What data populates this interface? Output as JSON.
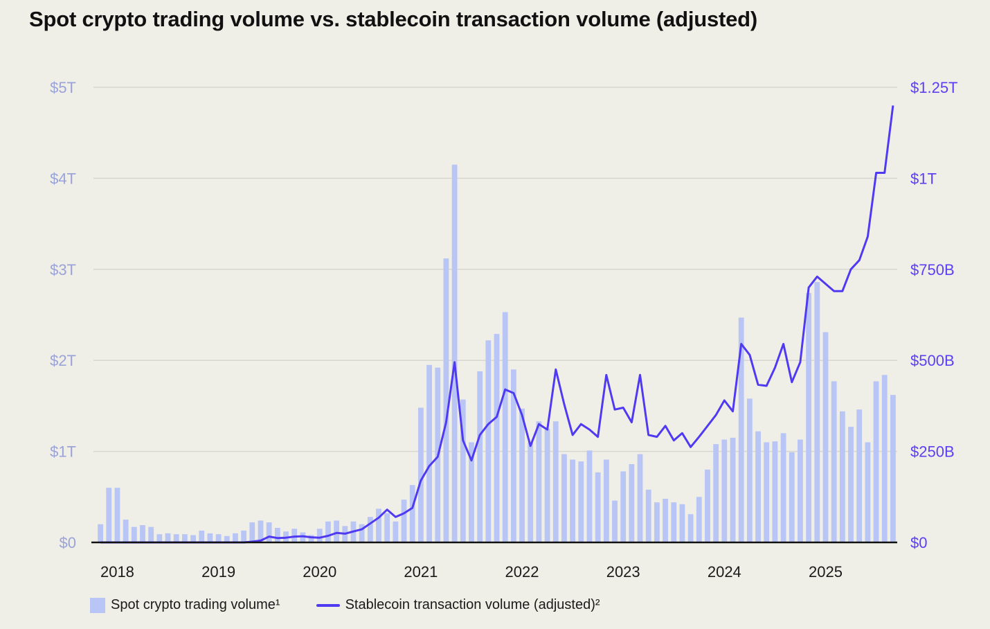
{
  "chart_data": {
    "type": "bar",
    "title": "Spot crypto trading volume vs. stablecoin transaction volume (adjusted)",
    "colors": {
      "bars": "#b8c5f5",
      "line": "#4f3af2",
      "left_axis": "#9aa3d8",
      "right_axis": "#5a3ff5",
      "grid": "#d6d6d0",
      "background": "#f0efe7"
    },
    "x_start": "2017-11",
    "x_end": "2025-09",
    "x_ticks": [
      "2018",
      "2019",
      "2020",
      "2021",
      "2022",
      "2023",
      "2024",
      "2025"
    ],
    "left_axis": {
      "ticks": [
        "$0",
        "$1T",
        "$2T",
        "$3T",
        "$4T",
        "$5T"
      ],
      "range": [
        0,
        5
      ],
      "unit": "T"
    },
    "right_axis": {
      "ticks": [
        "$0",
        "$250B",
        "$500B",
        "$750B",
        "$1T",
        "$1.25T"
      ],
      "range": [
        0,
        1250
      ],
      "unit": "B"
    },
    "grid": true,
    "legend_position": "bottom-left",
    "series": [
      {
        "name": "Spot crypto trading volume¹",
        "type": "bar",
        "axis": "left",
        "values": [
          0.2,
          0.6,
          0.6,
          0.25,
          0.17,
          0.19,
          0.17,
          0.09,
          0.1,
          0.09,
          0.09,
          0.08,
          0.13,
          0.1,
          0.09,
          0.07,
          0.1,
          0.13,
          0.22,
          0.24,
          0.22,
          0.16,
          0.12,
          0.15,
          0.11,
          0.08,
          0.15,
          0.23,
          0.24,
          0.18,
          0.23,
          0.2,
          0.28,
          0.37,
          0.32,
          0.23,
          0.47,
          0.63,
          1.48,
          1.95,
          1.92,
          3.12,
          4.15,
          1.57,
          1.1,
          1.88,
          2.22,
          2.29,
          2.53,
          1.9,
          1.47,
          1.1,
          1.33,
          1.25,
          1.33,
          0.97,
          0.91,
          0.89,
          1.01,
          0.77,
          0.91,
          0.46,
          0.78,
          0.86,
          0.97,
          0.58,
          0.44,
          0.48,
          0.44,
          0.42,
          0.31,
          0.5,
          0.8,
          1.08,
          1.13,
          1.15,
          2.47,
          1.58,
          1.22,
          1.1,
          1.11,
          1.2,
          0.99,
          1.13,
          2.74,
          2.86,
          2.31,
          1.77,
          1.44,
          1.27,
          1.46,
          1.1,
          1.77,
          1.84,
          1.62
        ]
      },
      {
        "name": "Stablecoin transaction volume (adjusted)²",
        "type": "line",
        "axis": "right",
        "values": [
          0,
          0,
          0,
          0,
          0,
          0,
          0,
          0,
          0,
          0,
          0,
          0,
          0,
          0,
          0,
          0,
          0,
          0,
          2,
          5,
          16,
          12,
          13,
          16,
          17,
          14,
          13,
          18,
          26,
          24,
          30,
          36,
          52,
          68,
          90,
          70,
          80,
          95,
          170,
          210,
          235,
          330,
          495,
          280,
          225,
          295,
          325,
          345,
          420,
          410,
          350,
          265,
          325,
          310,
          475,
          380,
          295,
          325,
          310,
          290,
          460,
          365,
          370,
          330,
          460,
          295,
          290,
          320,
          280,
          300,
          262,
          290,
          320,
          350,
          390,
          360,
          545,
          515,
          433,
          430,
          480,
          545,
          440,
          495,
          700,
          730,
          710,
          690,
          690,
          750,
          775,
          840,
          1015,
          1015,
          1200
        ]
      }
    ]
  }
}
